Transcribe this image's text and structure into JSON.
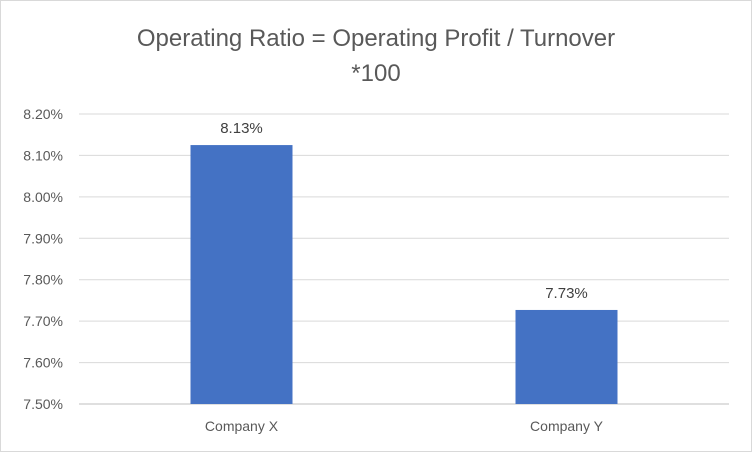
{
  "chart_data": {
    "type": "bar",
    "title_line1": "Operating Ratio = Operating Profit / Turnover",
    "title_line2": "*100",
    "categories": [
      "Company X",
      "Company Y"
    ],
    "values": [
      8.125,
      7.727
    ],
    "data_labels": [
      "8.13%",
      "7.73%"
    ],
    "ylim": [
      7.5,
      8.2
    ],
    "y_ticks": [
      "7.50%",
      "7.60%",
      "7.70%",
      "7.80%",
      "7.90%",
      "8.00%",
      "8.10%",
      "8.20%"
    ],
    "y_tick_values": [
      7.5,
      7.6,
      7.7,
      7.8,
      7.9,
      8.0,
      8.1,
      8.2
    ],
    "grid": true,
    "bar_color": "#4472C4"
  }
}
